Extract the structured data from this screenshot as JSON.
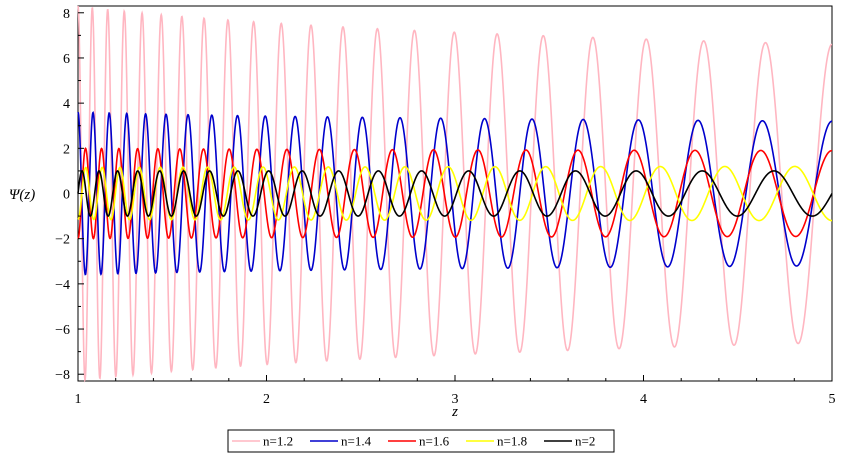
{
  "chart_data": {
    "type": "line",
    "xlabel": "z",
    "ylabel": "Ψ(z)",
    "xlim": [
      1,
      5
    ],
    "ylim": [
      -8.3,
      8.3
    ],
    "xticks": [
      1,
      2,
      3,
      4,
      5
    ],
    "yticks": [
      -8,
      -6,
      -4,
      -2,
      0,
      2,
      4,
      6,
      8
    ],
    "grid": false,
    "legend_position": "bottom-center",
    "series": [
      {
        "name": "n=1.2",
        "color": "#ffb6c1",
        "amp_start": 8.3,
        "amp_end": 6.6,
        "half_cycles": 44,
        "phase_start": "max"
      },
      {
        "name": "n=1.4",
        "color": "#0000cc",
        "amp_start": 3.6,
        "amp_end": 3.2,
        "half_cycles": 42,
        "phase_start": "max"
      },
      {
        "name": "n=1.6",
        "color": "#ff0000",
        "amp_start": 2.0,
        "amp_end": 1.9,
        "half_cycles": 41,
        "phase_start": "min"
      },
      {
        "name": "n=1.8",
        "color": "#ffff00",
        "amp_start": 1.15,
        "amp_end": 1.2,
        "half_cycles": 40,
        "phase_start": "min"
      },
      {
        "name": "n=2",
        "color": "#000000",
        "amp_start": 1.0,
        "amp_end": 1.0,
        "half_cycles": 38,
        "phase_start": "zero"
      }
    ]
  }
}
